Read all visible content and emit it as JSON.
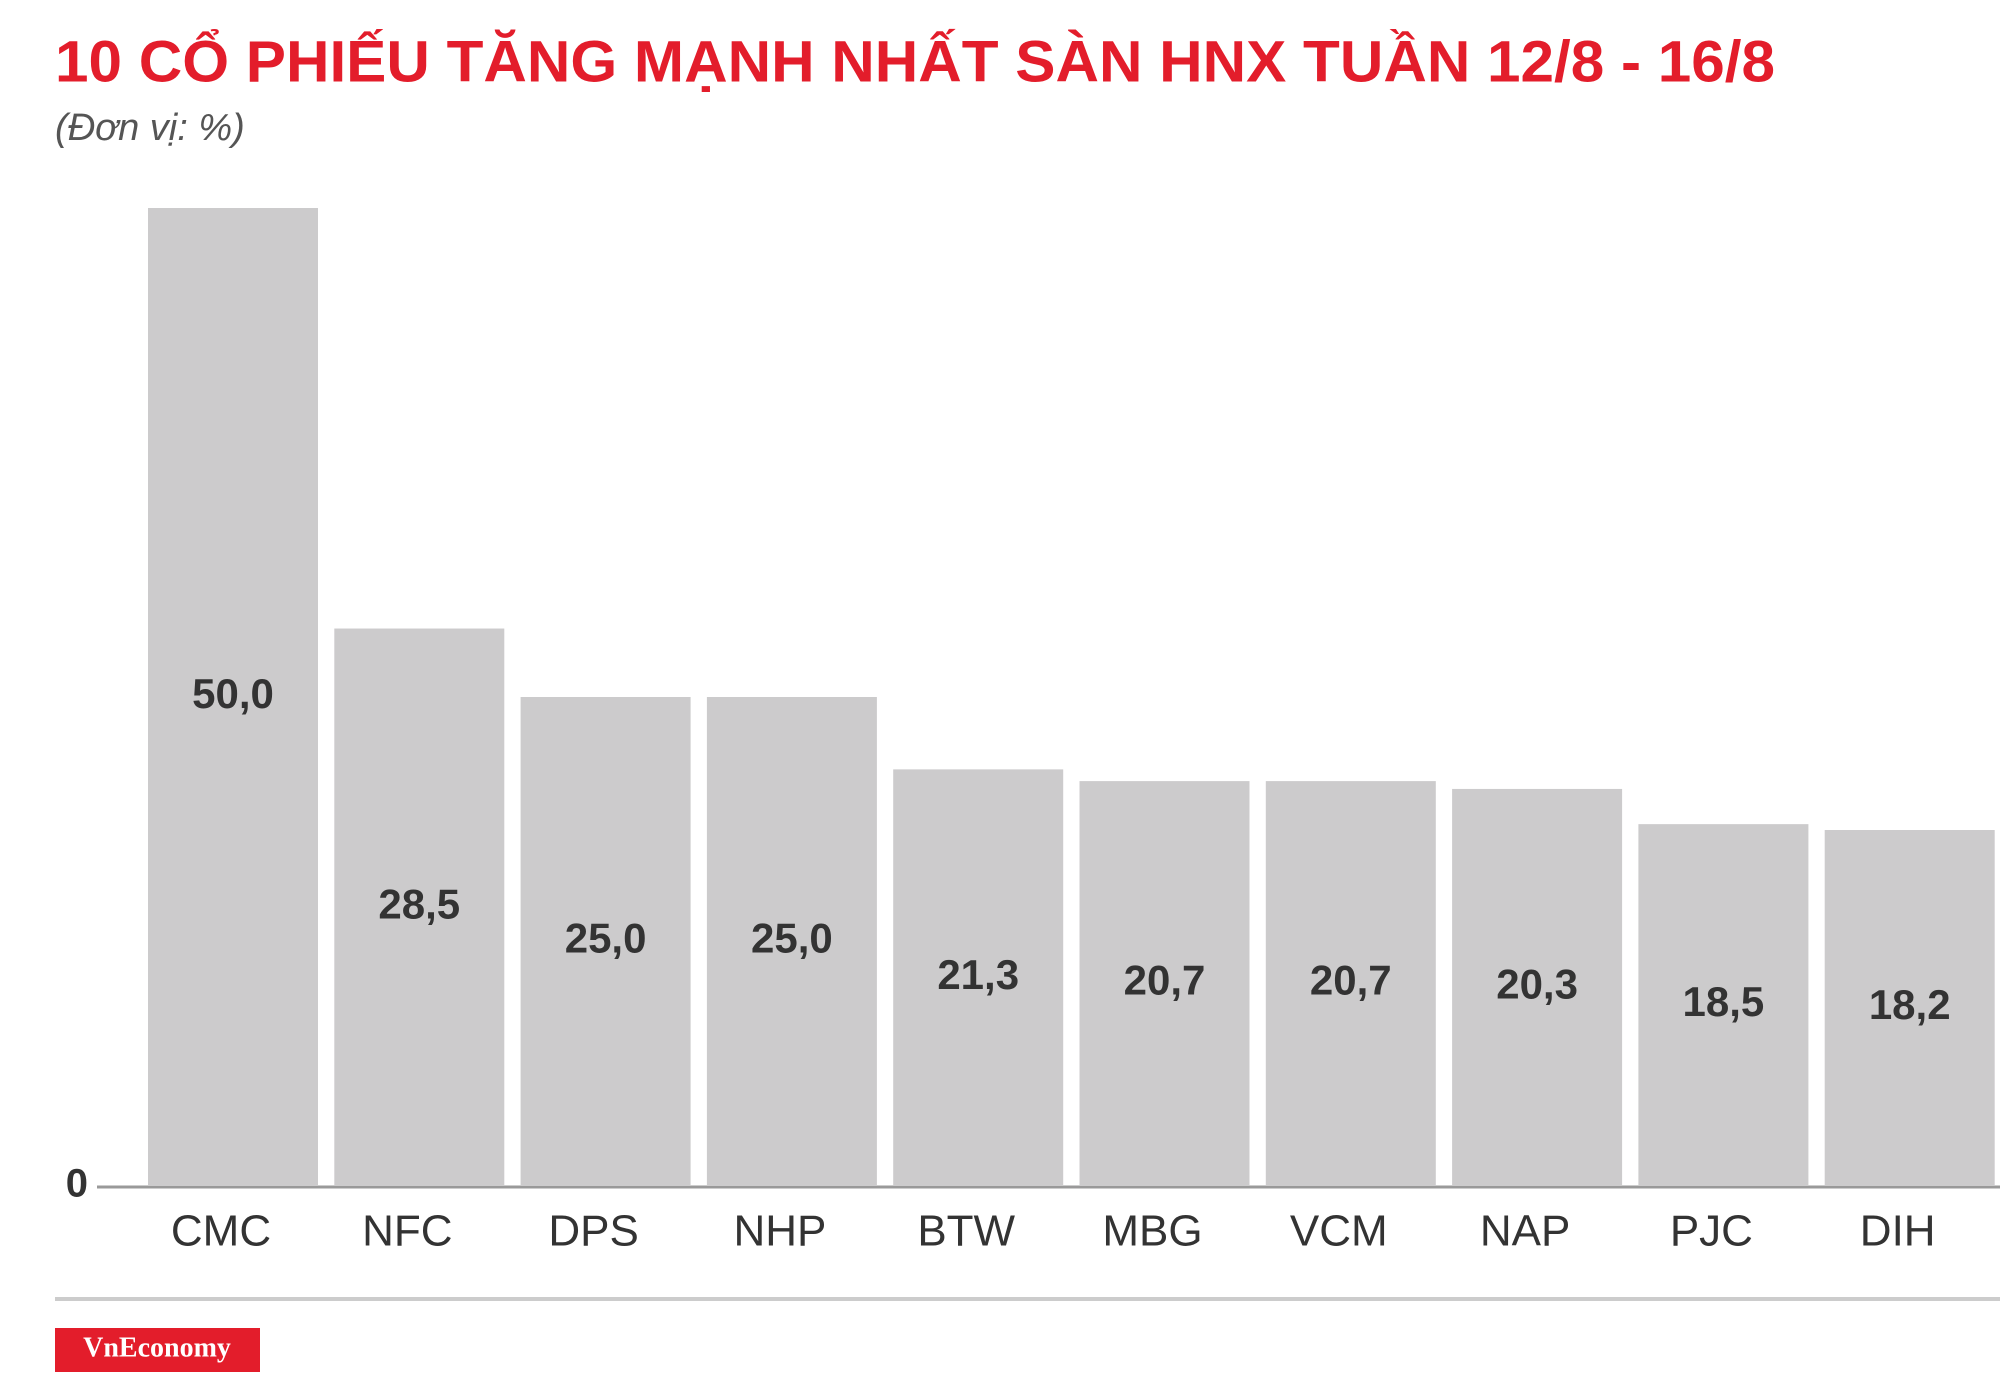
{
  "chart_data": {
    "type": "bar",
    "title": "10 CỔ PHIẾU TĂNG MẠNH NHẤT SÀN HNX TUẦN 12/8 - 16/8",
    "subtitle": "(Đơn vị: %)",
    "categories": [
      "CMC",
      "NFC",
      "DPS",
      "NHP",
      "BTW",
      "MBG",
      "VCM",
      "NAP",
      "PJC",
      "DIH"
    ],
    "values": [
      50,
      28.5,
      25,
      25,
      21.3,
      20.7,
      20.7,
      20.3,
      18.5,
      18.2
    ],
    "value_labels": [
      "50,0",
      "28,5",
      "25,0",
      "25,0",
      "21,3",
      "20,7",
      "20,7",
      "20,3",
      "18,5",
      "18,2"
    ],
    "color": "#cccbcc",
    "ylim": [
      0,
      50
    ],
    "yticks": [
      0
    ],
    "logo": "VnEconomy"
  }
}
